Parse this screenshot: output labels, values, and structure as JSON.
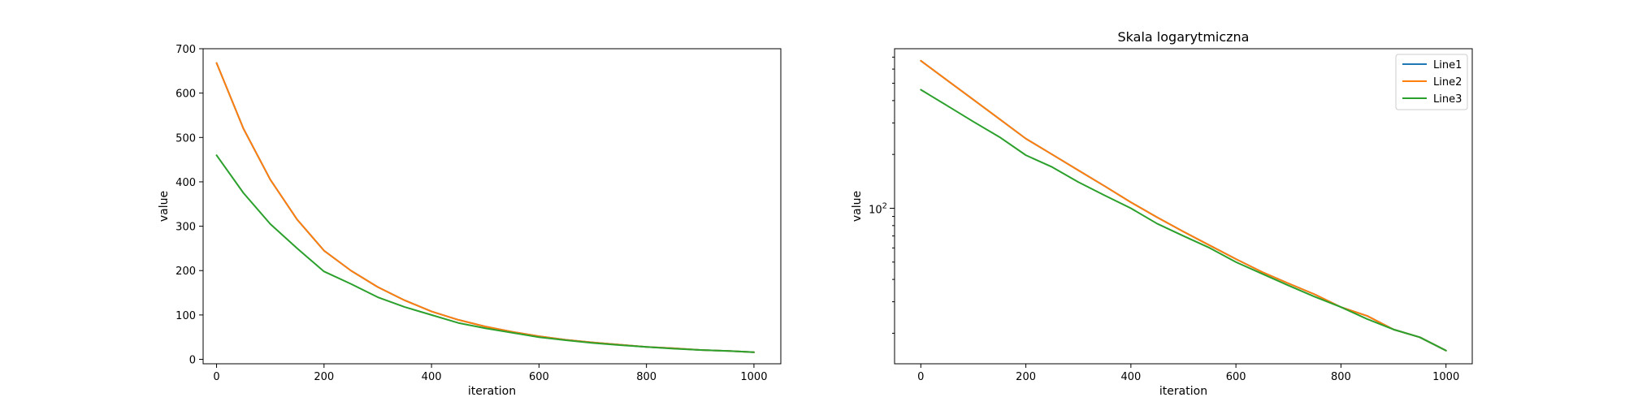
{
  "chart_data": [
    {
      "type": "line",
      "title": "",
      "xlabel": "iteration",
      "ylabel": "value",
      "xlim": [
        -25,
        1050
      ],
      "ylim": [
        -10,
        700
      ],
      "x_ticks": [
        0,
        200,
        400,
        600,
        800,
        1000
      ],
      "x_tick_labels": [
        "0",
        "200",
        "400",
        "600",
        "800",
        "1000"
      ],
      "y_ticks": [
        0,
        100,
        200,
        300,
        400,
        500,
        600,
        700
      ],
      "y_tick_labels": [
        "0",
        "100",
        "200",
        "300",
        "400",
        "500",
        "600",
        "700"
      ],
      "grid": false,
      "x": [
        0,
        50,
        100,
        150,
        200,
        250,
        300,
        350,
        400,
        450,
        500,
        550,
        600,
        650,
        700,
        750,
        800,
        850,
        900,
        950,
        1000
      ],
      "series": [
        {
          "name": "Line1",
          "color": "#1f77b4",
          "values": [
            668,
            520,
            405,
            315,
            245,
            200,
            163,
            133,
            108,
            89,
            74,
            62,
            52,
            44,
            38,
            33,
            28,
            25,
            21,
            19,
            16
          ]
        },
        {
          "name": "Line2",
          "color": "#ff7f0e",
          "values": [
            668,
            520,
            405,
            315,
            245,
            200,
            163,
            133,
            108,
            89,
            74,
            62,
            52,
            44,
            38,
            33,
            28,
            25,
            21,
            19,
            16
          ]
        },
        {
          "name": "Line3",
          "color": "#2ca02c",
          "values": [
            460,
            375,
            305,
            250,
            198,
            170,
            140,
            118,
            100,
            82,
            70,
            60,
            50,
            43,
            37,
            32,
            28,
            24,
            21,
            19,
            16
          ]
        }
      ]
    },
    {
      "type": "line",
      "title": "Skala logarytmiczna",
      "xlabel": "iteration",
      "ylabel": "value",
      "yscale": "log",
      "xlim": [
        -50,
        1050
      ],
      "ylim": [
        13.5,
        780
      ],
      "x_ticks": [
        0,
        200,
        400,
        600,
        800,
        1000
      ],
      "x_tick_labels": [
        "0",
        "200",
        "400",
        "600",
        "800",
        "1000"
      ],
      "y_major_ticks": [
        100
      ],
      "y_major_tick_label_base": "10",
      "y_major_tick_label_exp": "2",
      "y_minor_ticks": [
        20,
        30,
        40,
        50,
        60,
        70,
        80,
        90,
        200,
        300,
        400,
        500,
        600,
        700
      ],
      "grid": false,
      "legend": {
        "position": "top-right",
        "entries": [
          "Line1",
          "Line2",
          "Line3"
        ]
      },
      "x": [
        0,
        50,
        100,
        150,
        200,
        250,
        300,
        350,
        400,
        450,
        500,
        550,
        600,
        650,
        700,
        750,
        800,
        850,
        900,
        950,
        1000
      ],
      "series": [
        {
          "name": "Line1",
          "color": "#1f77b4",
          "values": [
            668,
            520,
            405,
            315,
            245,
            200,
            163,
            133,
            108,
            89,
            74,
            62,
            52,
            44,
            38,
            33,
            28,
            25,
            21,
            19,
            16
          ]
        },
        {
          "name": "Line2",
          "color": "#ff7f0e",
          "values": [
            668,
            520,
            405,
            315,
            245,
            200,
            163,
            133,
            108,
            89,
            74,
            62,
            52,
            44,
            38,
            33,
            28,
            25,
            21,
            19,
            16
          ]
        },
        {
          "name": "Line3",
          "color": "#2ca02c",
          "values": [
            460,
            375,
            305,
            250,
            198,
            170,
            140,
            118,
            100,
            82,
            70,
            60,
            50,
            43,
            37,
            32,
            28,
            24,
            21,
            19,
            16
          ]
        }
      ]
    }
  ]
}
